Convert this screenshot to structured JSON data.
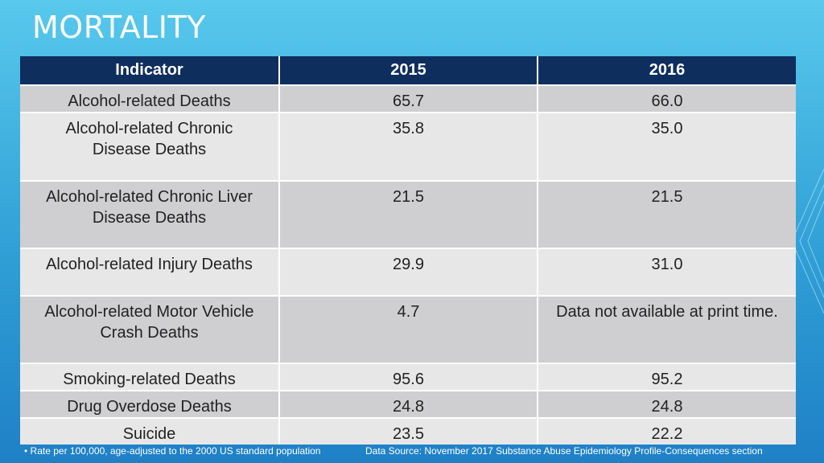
{
  "title": "MORTALITY",
  "table": {
    "headers": [
      "Indicator",
      "2015",
      "2016"
    ],
    "rows": [
      [
        "Alcohol-related Deaths",
        "65.7",
        "66.0"
      ],
      [
        "Alcohol-related Chronic Disease Deaths",
        "35.8",
        "35.0"
      ],
      [
        "Alcohol-related Chronic Liver Disease Deaths",
        "21.5",
        "21.5"
      ],
      [
        "Alcohol-related Injury Deaths",
        "29.9",
        "31.0"
      ],
      [
        "Alcohol-related Motor Vehicle Crash Deaths",
        "4.7",
        "Data not available at print time."
      ],
      [
        "Smoking-related Deaths",
        "95.6",
        "95.2"
      ],
      [
        "Drug Overdose Deaths",
        "24.8",
        "24.8"
      ],
      [
        "Suicide",
        "23.5",
        "22.2"
      ]
    ]
  },
  "footnote": "•  Rate per 100,000, age-adjusted to the 2000 US standard population",
  "source": "Data Source: November 2017 Substance Abuse Epidemiology Profile-Consequences section",
  "colors": {
    "header_bg": "#0e2e5e",
    "row_dark": "#cfcfd1",
    "row_light": "#e7e7e8",
    "background_top": "#58c9ec",
    "background_bottom": "#1f80c6"
  }
}
